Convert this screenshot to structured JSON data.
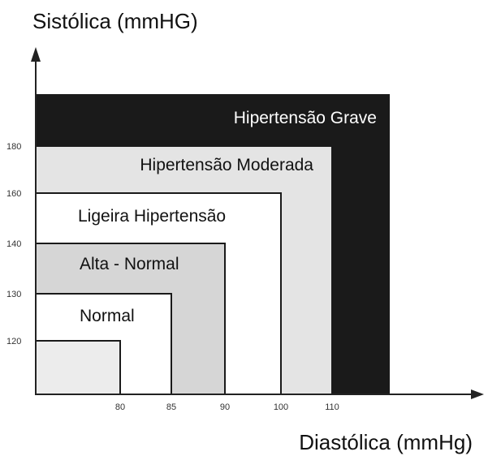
{
  "chart_data": {
    "type": "area",
    "title": "",
    "ylabel": "Sistólica (mmHG)",
    "xlabel": "Diastólica (mmHg)",
    "x_ticks": [
      80,
      85,
      90,
      100,
      110
    ],
    "y_ticks": [
      120,
      130,
      140,
      160,
      180
    ],
    "zones": [
      {
        "label": "Hipertensão Grave",
        "max_diastolic": null,
        "max_systolic": null,
        "fill": "#1a1a1a",
        "text_color": "#ffffff"
      },
      {
        "label": "Hipertensão Moderada",
        "max_diastolic": 110,
        "max_systolic": 180,
        "fill": "#e4e4e4",
        "text_color": "#111111"
      },
      {
        "label": "Ligeira Hipertensão",
        "max_diastolic": 100,
        "max_systolic": 160,
        "fill": "#ffffff",
        "text_color": "#111111"
      },
      {
        "label": "Alta - Normal",
        "max_diastolic": 90,
        "max_systolic": 140,
        "fill": "#d6d6d6",
        "text_color": "#111111"
      },
      {
        "label": "Normal",
        "max_diastolic": 85,
        "max_systolic": 130,
        "fill": "#ffffff",
        "text_color": "#111111"
      },
      {
        "label": "",
        "max_diastolic": 80,
        "max_systolic": 120,
        "fill": "#ececec",
        "text_color": "#111111"
      }
    ],
    "grid": false,
    "legend": "none"
  }
}
